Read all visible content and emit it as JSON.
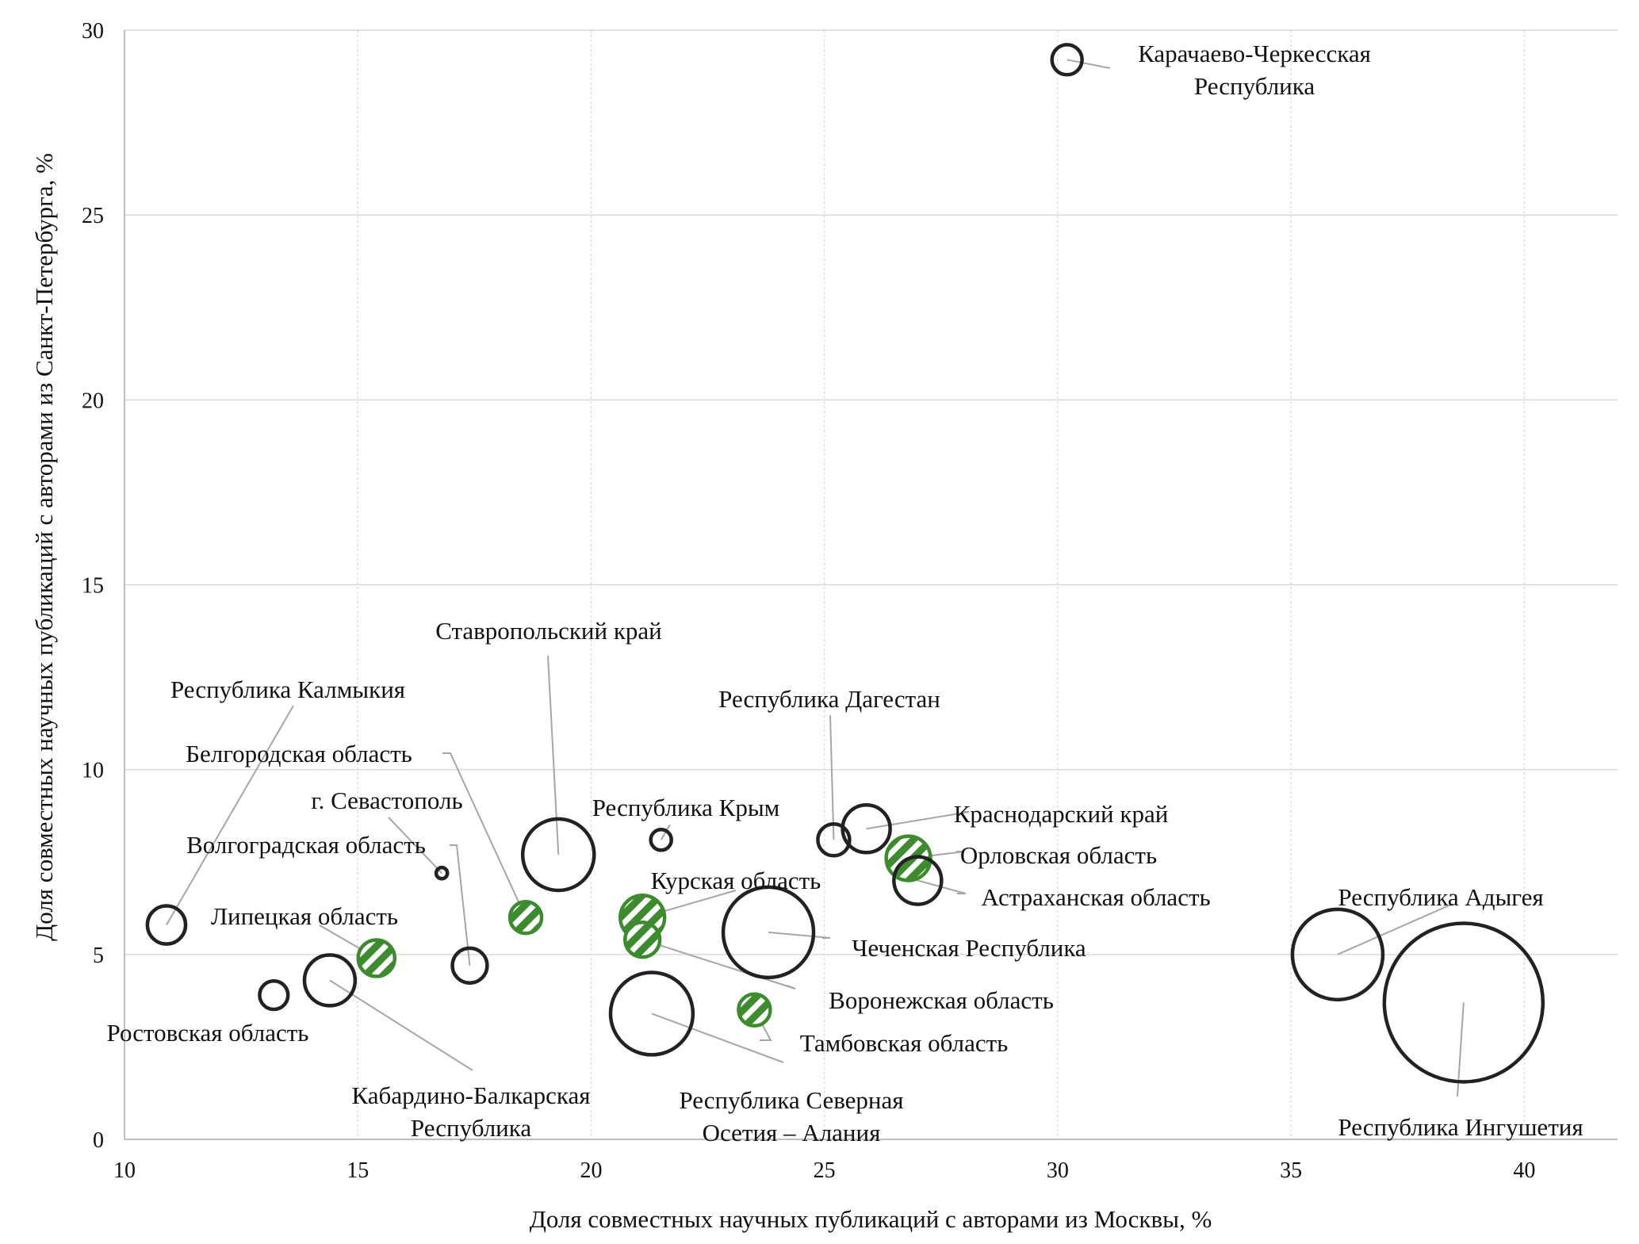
{
  "chart_data": {
    "type": "scatter",
    "subtype": "bubble",
    "title": "",
    "xlabel": "Доля совместных научных публикаций с авторами из Москвы, %",
    "ylabel": "Доля совместных научных публикаций с авторами из Санкт-Петербурга, %",
    "xlim": [
      10,
      42
    ],
    "ylim": [
      0,
      30
    ],
    "xticks": [
      "10",
      "15",
      "20",
      "25",
      "30",
      "35",
      "40"
    ],
    "yticks": [
      "0",
      "5",
      "10",
      "15",
      "20",
      "25",
      "30"
    ],
    "grid": true,
    "legend": "none",
    "colors": {
      "plain_stroke": "#222222",
      "highlight": "#3d8b2e",
      "hatch_stripe": "#ffffff"
    },
    "size_note": "bubble size is relative area (largest = 100)",
    "points": [
      {
        "name": "Карачаево-Черкесская Республика",
        "label_lines": [
          "Карачаево-Черкесская",
          "Республика"
        ],
        "x": 30.2,
        "y": 29.2,
        "size": 3.6,
        "highlight": false
      },
      {
        "name": "Республика Калмыкия",
        "label_lines": [
          "Республика Калмыкия"
        ],
        "x": 10.9,
        "y": 5.8,
        "size": 5.8,
        "highlight": false
      },
      {
        "name": "Ростовская область",
        "label_lines": [
          "Ростовская область"
        ],
        "x": 13.2,
        "y": 3.9,
        "size": 3.2,
        "highlight": false
      },
      {
        "name": "Кабардино-Балкарская Республика",
        "label_lines": [
          "Кабардино-Балкарская",
          "Республика"
        ],
        "x": 14.4,
        "y": 4.3,
        "size": 10.2,
        "highlight": false
      },
      {
        "name": "Липецкая область",
        "label_lines": [
          "Липецкая область"
        ],
        "x": 15.4,
        "y": 4.9,
        "size": 5.3,
        "highlight": true
      },
      {
        "name": "Волгоградская область",
        "label_lines": [
          "Волгоградская область"
        ],
        "x": 17.4,
        "y": 4.7,
        "size": 4.8,
        "highlight": false
      },
      {
        "name": "г. Севастополь",
        "label_lines": [
          "г. Севастополь"
        ],
        "x": 16.8,
        "y": 7.2,
        "size": 0.5,
        "highlight": false
      },
      {
        "name": "Белгородская область",
        "label_lines": [
          "Белгородская область"
        ],
        "x": 18.6,
        "y": 6.0,
        "size": 4.0,
        "highlight": true
      },
      {
        "name": "Ставропольский край",
        "label_lines": [
          "Ставропольский край"
        ],
        "x": 19.3,
        "y": 7.7,
        "size": 20.3,
        "highlight": false
      },
      {
        "name": "Республика Крым",
        "label_lines": [
          "Республика Крым"
        ],
        "x": 21.5,
        "y": 8.1,
        "size": 1.7,
        "highlight": false
      },
      {
        "name": "Курская область",
        "label_lines": [
          "Курская область"
        ],
        "x": 21.1,
        "y": 6.0,
        "size": 7.8,
        "highlight": true
      },
      {
        "name": "Воронежская область",
        "label_lines": [
          "Воронежская область"
        ],
        "x": 21.1,
        "y": 5.4,
        "size": 4.8,
        "highlight": true
      },
      {
        "name": "Чеченская Республика",
        "label_lines": [
          "Чеченская Республика"
        ],
        "x": 23.8,
        "y": 5.6,
        "size": 32.5,
        "highlight": false
      },
      {
        "name": "Республика Северная Осетия – Алания",
        "label_lines": [
          "Республика Северная",
          "Осетия – Алания"
        ],
        "x": 21.3,
        "y": 3.4,
        "size": 27.0,
        "highlight": false
      },
      {
        "name": "Тамбовская область",
        "label_lines": [
          "Тамбовская область"
        ],
        "x": 23.5,
        "y": 3.5,
        "size": 4.0,
        "highlight": true
      },
      {
        "name": "Республика Дагестан",
        "label_lines": [
          "Республика Дагестан"
        ],
        "x": 25.2,
        "y": 8.1,
        "size": 4.0,
        "highlight": false
      },
      {
        "name": "Краснодарский край",
        "label_lines": [
          "Краснодарский край"
        ],
        "x": 25.9,
        "y": 8.4,
        "size": 9.0,
        "highlight": false
      },
      {
        "name": "Орловская область",
        "label_lines": [
          "Орловская область"
        ],
        "x": 26.8,
        "y": 7.6,
        "size": 7.8,
        "highlight": true
      },
      {
        "name": "Астраханская область",
        "label_lines": [
          "Астраханская область"
        ],
        "x": 27.0,
        "y": 7.0,
        "size": 9.0,
        "highlight": false
      },
      {
        "name": "Республика Адыгея",
        "label_lines": [
          "Республика Адыгея"
        ],
        "x": 36.0,
        "y": 5.0,
        "size": 32.5,
        "highlight": false
      },
      {
        "name": "Республика Ингушетия",
        "label_lines": [
          "Республика Ингушетия"
        ],
        "x": 38.7,
        "y": 3.7,
        "size": 100,
        "highlight": false
      }
    ]
  }
}
